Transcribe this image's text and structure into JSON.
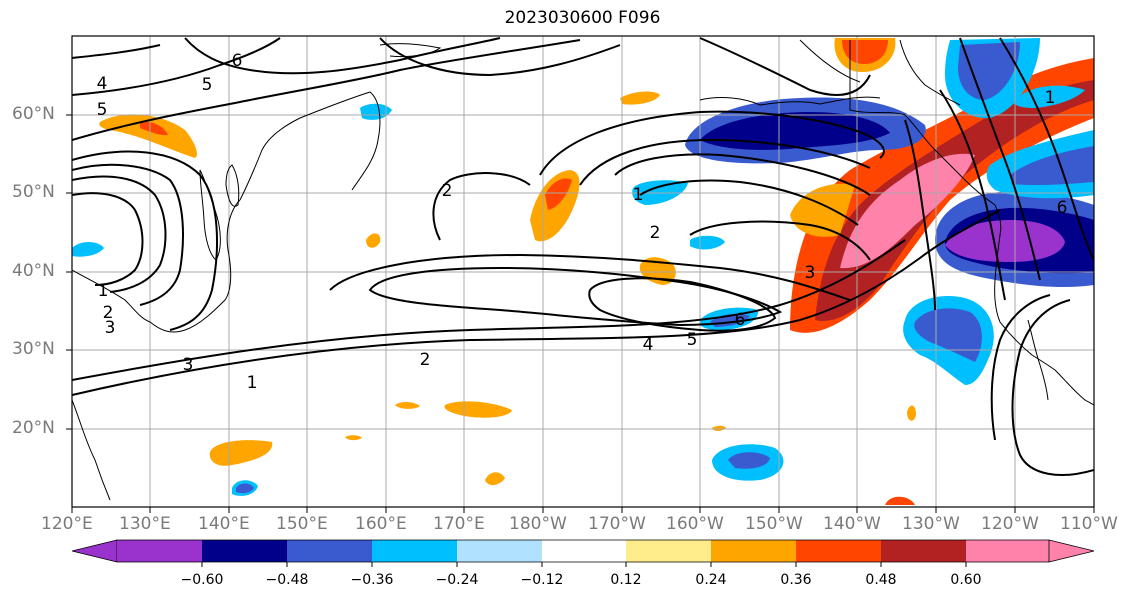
{
  "title": "2023030600 F096",
  "map": {
    "lon_range": [
      "120°E",
      "110°W"
    ],
    "lat_range_deg": [
      10,
      70
    ],
    "lat_labels": [
      "60°N",
      "50°N",
      "40°N",
      "30°N",
      "20°N"
    ],
    "lon_labels": [
      "120°E",
      "130°E",
      "140°E",
      "150°E",
      "160°E",
      "170°E",
      "180°W",
      "170°W",
      "160°W",
      "150°W",
      "140°W",
      "130°W",
      "120°W",
      "110°W"
    ],
    "contour_labels": [
      "6",
      "5",
      "4",
      "5",
      "2",
      "1",
      "2",
      "3",
      "3",
      "2",
      "1",
      "1",
      "2",
      "3",
      "4",
      "5",
      "6",
      "6",
      "1"
    ],
    "gridlines": true,
    "coastlines": true
  },
  "colorbar": {
    "ticks": [
      "−0.60",
      "−0.48",
      "−0.36",
      "−0.24",
      "−0.12",
      "0.12",
      "0.24",
      "0.36",
      "0.48",
      "0.60"
    ],
    "colors": [
      "#9a32cd",
      "#00008b",
      "#3a5bcf",
      "#00bfff",
      "#b0e2ff",
      "#ffffff",
      "#ffec8b",
      "#ffa500",
      "#ff4500",
      "#b22222",
      "#ff82ab"
    ],
    "extend": "both"
  }
}
